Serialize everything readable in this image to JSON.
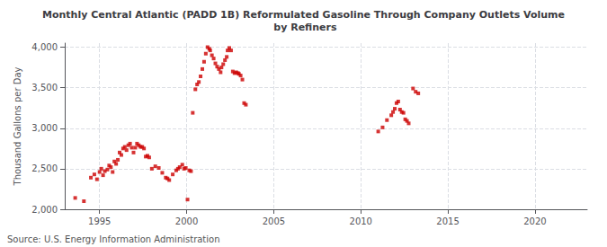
{
  "chart_data": {
    "type": "scatter",
    "title": "Monthly Central Atlantic (PADD 1B) Reformulated Gasoline Through Company Outlets Volume\n by Refiners",
    "ylabel": "Thousand Gallons per Day",
    "annotations": [
      "Source: U.S. Energy Information Administration"
    ],
    "color": "#cc0000",
    "marker": "square",
    "grid": true,
    "xlim": [
      1993.0,
      2023.0
    ],
    "ylim": [
      2000,
      4050
    ],
    "xticks": [
      1995,
      2000,
      2005,
      2010,
      2015,
      2020
    ],
    "yticks": [
      {
        "value": 2000,
        "label": "2,000"
      },
      {
        "value": 2500,
        "label": "2,500"
      },
      {
        "value": 3000,
        "label": "3,000"
      },
      {
        "value": 3500,
        "label": "3,500"
      },
      {
        "value": 4000,
        "label": "4,000"
      }
    ],
    "x": [
      1993.6,
      1994.1,
      1994.5,
      1994.7,
      1994.85,
      1995.0,
      1995.1,
      1995.2,
      1995.3,
      1995.45,
      1995.55,
      1995.65,
      1995.75,
      1995.85,
      1995.95,
      1996.05,
      1996.15,
      1996.25,
      1996.35,
      1996.45,
      1996.55,
      1996.65,
      1996.75,
      1996.85,
      1996.95,
      1997.05,
      1997.15,
      1997.25,
      1997.35,
      1997.45,
      1997.55,
      1997.65,
      1997.75,
      1997.85,
      1998.0,
      1998.2,
      1998.4,
      1998.6,
      1998.8,
      1998.9,
      1999.0,
      1999.2,
      1999.4,
      1999.5,
      1999.6,
      1999.75,
      1999.85,
      1999.95,
      2000.05,
      2000.15,
      2000.25,
      2000.35,
      2000.5,
      2000.6,
      2000.7,
      2000.8,
      2000.9,
      2001.0,
      2001.1,
      2001.2,
      2001.3,
      2001.35,
      2001.45,
      2001.55,
      2001.65,
      2001.75,
      2001.85,
      2001.95,
      2002.0,
      2002.1,
      2002.2,
      2002.3,
      2002.35,
      2002.45,
      2002.55,
      2002.65,
      2002.75,
      2002.85,
      2002.95,
      2003.0,
      2003.1,
      2003.2,
      2003.3,
      2003.4,
      2011.0,
      2011.25,
      2011.5,
      2011.75,
      2011.85,
      2011.95,
      2012.05,
      2012.15,
      2012.25,
      2012.35,
      2012.45,
      2012.55,
      2012.65,
      2012.75,
      2013.0,
      2013.15,
      2013.3
    ],
    "values": [
      2140,
      2100,
      2390,
      2430,
      2370,
      2460,
      2500,
      2420,
      2470,
      2490,
      2540,
      2520,
      2460,
      2590,
      2560,
      2610,
      2700,
      2670,
      2750,
      2770,
      2730,
      2790,
      2810,
      2760,
      2700,
      2760,
      2810,
      2790,
      2770,
      2770,
      2750,
      2650,
      2660,
      2640,
      2500,
      2530,
      2510,
      2450,
      2390,
      2380,
      2360,
      2430,
      2480,
      2500,
      2520,
      2550,
      2500,
      2510,
      2120,
      2480,
      2470,
      3190,
      3480,
      3540,
      3570,
      3640,
      3730,
      3820,
      3920,
      4000,
      3980,
      3960,
      3900,
      3860,
      3800,
      3760,
      3730,
      3690,
      3750,
      3790,
      3840,
      3880,
      3960,
      3990,
      3960,
      3700,
      3680,
      3690,
      3680,
      3670,
      3650,
      3600,
      3310,
      3290,
      2960,
      3010,
      3100,
      3160,
      3200,
      3240,
      3310,
      3330,
      3230,
      3200,
      3190,
      3110,
      3090,
      3060,
      3490,
      3450,
      3430
    ]
  }
}
